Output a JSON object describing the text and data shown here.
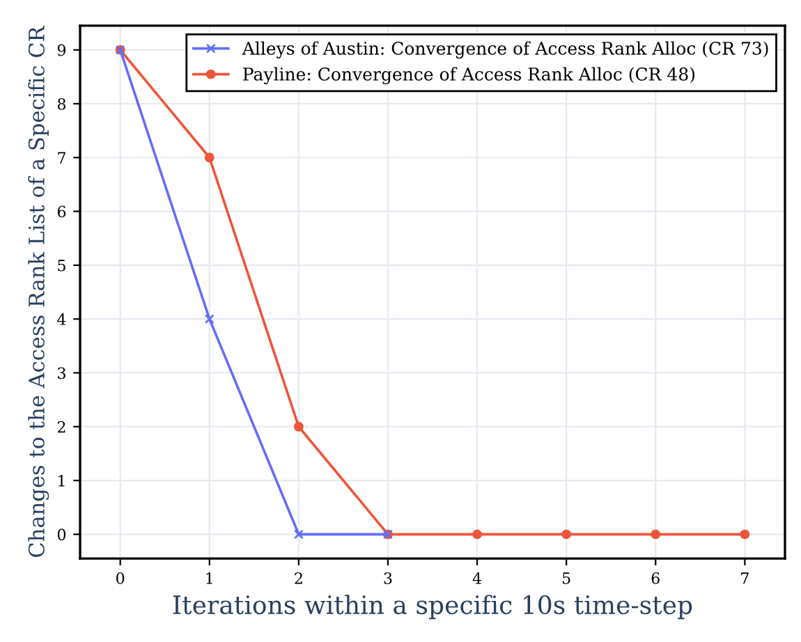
{
  "chart_data": {
    "type": "line",
    "xlabel": "Iterations within a specific 10s time-step",
    "ylabel": "Changes to the Access Rank List of a Specific CR",
    "x": [
      0,
      1,
      2,
      3,
      4,
      5,
      6,
      7
    ],
    "series": [
      {
        "name": "Alleys of Austin: Convergence of Access Rank Alloc (CR 73)",
        "color": "#636efa",
        "marker": "cross",
        "values": [
          9,
          4,
          0,
          0,
          null,
          null,
          null,
          null
        ]
      },
      {
        "name": "Payline: Convergence of Access Rank Alloc (CR 48)",
        "color": "#ef553b",
        "marker": "circle",
        "values": [
          9,
          7,
          2,
          0,
          0,
          0,
          0,
          0
        ]
      }
    ],
    "xlim": [
      -0.45,
      7.45
    ],
    "ylim": [
      -0.45,
      9.45
    ],
    "xticks": [
      0,
      1,
      2,
      3,
      4,
      5,
      6,
      7
    ],
    "yticks": [
      0,
      1,
      2,
      3,
      4,
      5,
      6,
      7,
      8,
      9
    ],
    "grid": true,
    "legend": "top right",
    "line_style": "solid"
  }
}
